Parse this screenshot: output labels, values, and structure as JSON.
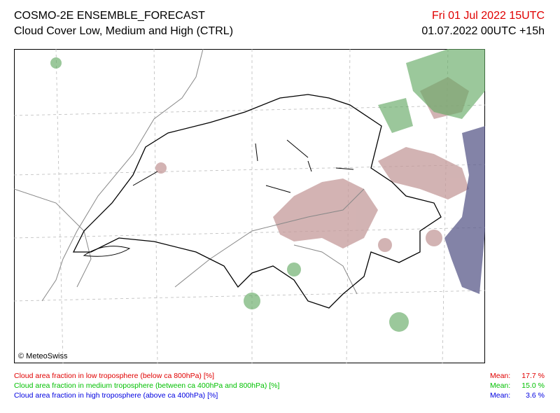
{
  "header": {
    "title": "COSMO-2E ENSEMBLE_FORECAST",
    "subtitle": "Cloud Cover Low, Medium and High (CTRL)",
    "valid_time": "Fri 01 Jul 2022 15UTC",
    "run_time": "01.07.2022 00UTC +15h"
  },
  "map": {
    "credit": "© MeteoSwiss"
  },
  "legend": [
    {
      "text": "Cloud area fraction in low troposphere (below ca 800hPa) [%]",
      "mean_label": "Mean:",
      "mean": "17.7 %"
    },
    {
      "text": "Cloud area fraction in medium troposphere (between ca 400hPa and 800hPa) [%]",
      "mean_label": "Mean:",
      "mean": "15.0 %"
    },
    {
      "text": "Cloud area fraction in high troposphere (above ca 400hPa) [%]",
      "mean_label": "Mean:",
      "mean": "3.6 %"
    }
  ]
}
